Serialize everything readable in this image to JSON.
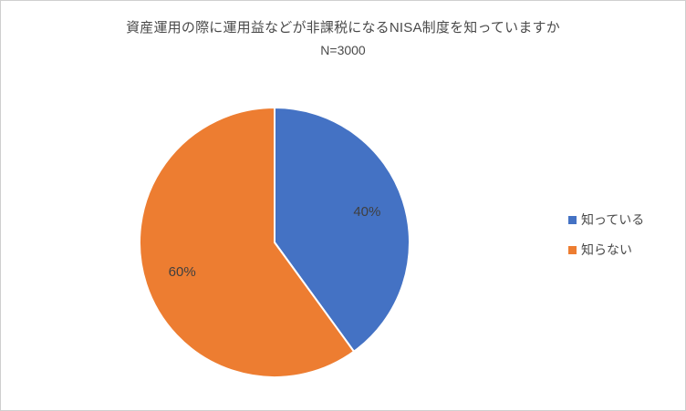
{
  "chart_data": {
    "type": "pie",
    "title": "資産運用の際に運用益などが非課税になるNISA制度を知っていますか",
    "subtitle": "N=3000",
    "categories": [
      "知っている",
      "知らない"
    ],
    "values": [
      40,
      60
    ],
    "value_labels": [
      "40%",
      "60%"
    ],
    "colors": [
      "#4472C4",
      "#ED7D31"
    ],
    "start_angle_deg": 0,
    "direction": "clockwise",
    "legend_position": "right",
    "label_text_color": "#3f3f3f",
    "title_text_color": "#4a4a4a"
  }
}
